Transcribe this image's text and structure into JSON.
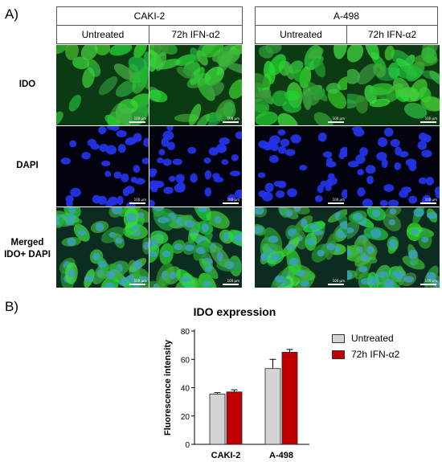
{
  "figure": {
    "panel_a": "A)",
    "panel_b": "B)",
    "cell_lines": [
      "CAKI-2",
      "A-498"
    ],
    "conditions": [
      "Untreated",
      "72h IFN-α2"
    ],
    "rows": [
      {
        "label": "IDO",
        "color": "#2fa33a"
      },
      {
        "label": "DAPI",
        "color": "#1a22d8"
      },
      {
        "label": "Merged IDO+ DAPI",
        "color": "#2a8f8a"
      }
    ],
    "scale_bar": "100 µm"
  },
  "chart_data": {
    "type": "bar",
    "title": "IDO expression",
    "xlabel": "",
    "ylabel": "Fluorescence intensity",
    "ylim": [
      0,
      80
    ],
    "yticks": [
      0,
      20,
      40,
      60,
      80
    ],
    "categories": [
      "CAKI-2",
      "A-498"
    ],
    "series": [
      {
        "name": "Untreated",
        "color": "#d4d4d4",
        "values": [
          35.5,
          53.5
        ],
        "errors": [
          1.0,
          6.5
        ]
      },
      {
        "name": "72h IFN-α2",
        "color": "#c00000",
        "values": [
          37.0,
          65.0
        ],
        "errors": [
          1.5,
          2.0
        ]
      }
    ],
    "legend_position": "right",
    "grid": false
  }
}
